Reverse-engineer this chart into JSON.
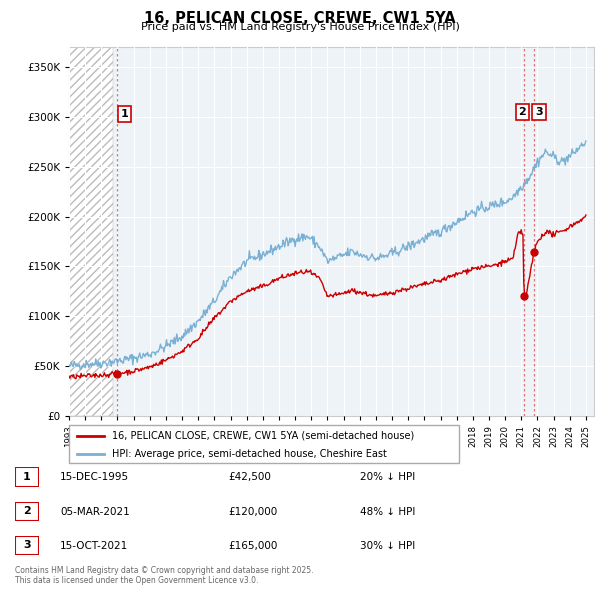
{
  "title": "16, PELICAN CLOSE, CREWE, CW1 5YA",
  "subtitle": "Price paid vs. HM Land Registry's House Price Index (HPI)",
  "ylim": [
    0,
    370000
  ],
  "yticks": [
    0,
    50000,
    100000,
    150000,
    200000,
    250000,
    300000,
    350000
  ],
  "hpi_color": "#7ab0d4",
  "price_color": "#cc0000",
  "vline_color": "#dd6666",
  "sale_points": [
    {
      "year": 1995.96,
      "price": 42500,
      "label": "1"
    },
    {
      "year": 2021.17,
      "price": 120000,
      "label": "2"
    },
    {
      "year": 2021.79,
      "price": 165000,
      "label": "3"
    }
  ],
  "legend_entries": [
    {
      "label": "16, PELICAN CLOSE, CREWE, CW1 5YA (semi-detached house)",
      "color": "#cc0000"
    },
    {
      "label": "HPI: Average price, semi-detached house, Cheshire East",
      "color": "#7ab0d4"
    }
  ],
  "table_rows": [
    {
      "num": "1",
      "date": "15-DEC-1995",
      "price": "£42,500",
      "hpi": "20% ↓ HPI"
    },
    {
      "num": "2",
      "date": "05-MAR-2021",
      "price": "£120,000",
      "hpi": "48% ↓ HPI"
    },
    {
      "num": "3",
      "date": "15-OCT-2021",
      "price": "£165,000",
      "hpi": "30% ↓ HPI"
    }
  ],
  "footnote": "Contains HM Land Registry data © Crown copyright and database right 2025.\nThis data is licensed under the Open Government Licence v3.0."
}
